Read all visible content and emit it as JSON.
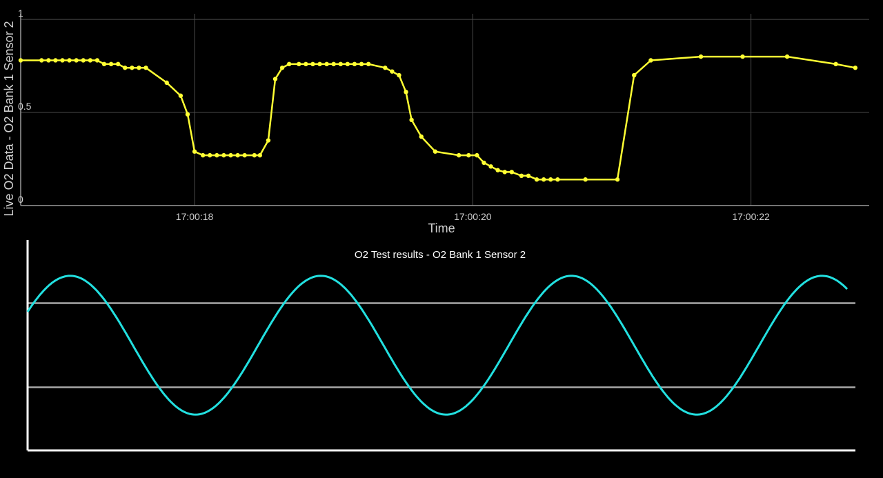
{
  "chart_data": [
    {
      "type": "line",
      "title": "",
      "xlabel": "Time",
      "ylabel": "Live O2 Data - O2 Bank 1 Sensor 2",
      "x_unit": "seconds",
      "xlim": [
        16.75,
        22.85
      ],
      "ylim": [
        0,
        1.03
      ],
      "y_ticks": [
        {
          "value": 0,
          "label": "0"
        },
        {
          "value": 0.5,
          "label": "0.5"
        },
        {
          "value": 1,
          "label": "1"
        }
      ],
      "x_ticks": [
        {
          "value": 18,
          "label": "17:00:18"
        },
        {
          "value": 20,
          "label": "17:00:20"
        },
        {
          "value": 22,
          "label": "17:00:22"
        }
      ],
      "grid": true,
      "color": "#ffff33",
      "series": [
        {
          "x": [
            16.75,
            16.9,
            16.95,
            17.0,
            17.05,
            17.1,
            17.15,
            17.2,
            17.25,
            17.3,
            17.35,
            17.4,
            17.45,
            17.5,
            17.55,
            17.6,
            17.65,
            17.8,
            17.9,
            17.95,
            18.0,
            18.06,
            18.11,
            18.16,
            18.21,
            18.26,
            18.31,
            18.36,
            18.43,
            18.47,
            18.53,
            18.58,
            18.63,
            18.68,
            18.75,
            18.8,
            18.85,
            18.9,
            18.95,
            19.0,
            19.05,
            19.1,
            19.15,
            19.2,
            19.25,
            19.37,
            19.42,
            19.47,
            19.52,
            19.56,
            19.63,
            19.73,
            19.9,
            19.97,
            20.03,
            20.08,
            20.13,
            20.18,
            20.23,
            20.28,
            20.35,
            20.4,
            20.46,
            20.51,
            20.56,
            20.61,
            20.81,
            21.04,
            21.16,
            21.28,
            21.64,
            21.94,
            22.26,
            22.61,
            22.75
          ],
          "y": [
            0.78,
            0.78,
            0.78,
            0.78,
            0.78,
            0.78,
            0.78,
            0.78,
            0.78,
            0.78,
            0.76,
            0.76,
            0.76,
            0.74,
            0.74,
            0.74,
            0.74,
            0.66,
            0.59,
            0.49,
            0.29,
            0.27,
            0.27,
            0.27,
            0.27,
            0.27,
            0.27,
            0.27,
            0.27,
            0.27,
            0.35,
            0.68,
            0.74,
            0.76,
            0.76,
            0.76,
            0.76,
            0.76,
            0.76,
            0.76,
            0.76,
            0.76,
            0.76,
            0.76,
            0.76,
            0.74,
            0.72,
            0.7,
            0.61,
            0.46,
            0.37,
            0.29,
            0.27,
            0.27,
            0.27,
            0.23,
            0.21,
            0.19,
            0.18,
            0.18,
            0.16,
            0.16,
            0.14,
            0.14,
            0.14,
            0.14,
            0.14,
            0.14,
            0.7,
            0.78,
            0.8,
            0.8,
            0.8,
            0.76,
            0.74
          ]
        }
      ]
    },
    {
      "type": "line",
      "title": "O2 Test results - O2 Bank 1 Sensor 2",
      "xlabel": "",
      "ylabel": "",
      "ylim": [
        0,
        1
      ],
      "reference_lines": [
        0.3,
        0.7
      ],
      "grid": false,
      "color": "#22e0e0",
      "series": [
        {
          "waveform": "sine",
          "cycles": 3.27,
          "phase_start": 0.33,
          "amplitude": 0.33,
          "offset": 0.5
        }
      ]
    }
  ]
}
